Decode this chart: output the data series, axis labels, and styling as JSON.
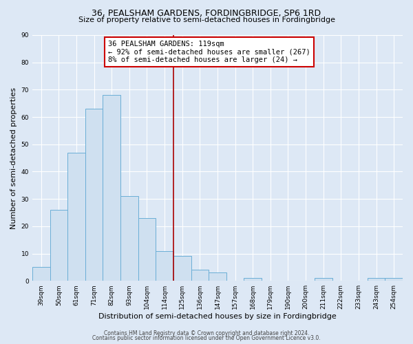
{
  "title": "36, PEALSHAM GARDENS, FORDINGBRIDGE, SP6 1RD",
  "subtitle": "Size of property relative to semi-detached houses in Fordingbridge",
  "xlabel": "Distribution of semi-detached houses by size in Fordingbridge",
  "ylabel": "Number of semi-detached properties",
  "bar_labels": [
    "39sqm",
    "50sqm",
    "61sqm",
    "71sqm",
    "82sqm",
    "93sqm",
    "104sqm",
    "114sqm",
    "125sqm",
    "136sqm",
    "147sqm",
    "157sqm",
    "168sqm",
    "179sqm",
    "190sqm",
    "200sqm",
    "211sqm",
    "222sqm",
    "233sqm",
    "243sqm",
    "254sqm"
  ],
  "bar_values": [
    5,
    26,
    47,
    63,
    68,
    31,
    23,
    11,
    9,
    4,
    3,
    0,
    1,
    0,
    0,
    0,
    1,
    0,
    0,
    1,
    1
  ],
  "bar_color": "#cfe0f0",
  "bar_edge_color": "#6aaed6",
  "annotation_title": "36 PEALSHAM GARDENS: 119sqm",
  "annotation_line1": "← 92% of semi-detached houses are smaller (267)",
  "annotation_line2": "8% of semi-detached houses are larger (24) →",
  "annotation_box_color": "#ffffff",
  "annotation_box_edge": "#cc0000",
  "vline_color": "#aa0000",
  "ylim": [
    0,
    90
  ],
  "yticks": [
    0,
    10,
    20,
    30,
    40,
    50,
    60,
    70,
    80,
    90
  ],
  "footer_line1": "Contains HM Land Registry data © Crown copyright and database right 2024.",
  "footer_line2": "Contains public sector information licensed under the Open Government Licence v3.0.",
  "bg_color": "#dde8f5",
  "plot_bg_color": "#dde8f5",
  "grid_color": "#ffffff",
  "title_fontsize": 9,
  "subtitle_fontsize": 8,
  "axis_label_fontsize": 8,
  "tick_fontsize": 6.5,
  "annot_fontsize": 7.5,
  "footer_fontsize": 5.5
}
